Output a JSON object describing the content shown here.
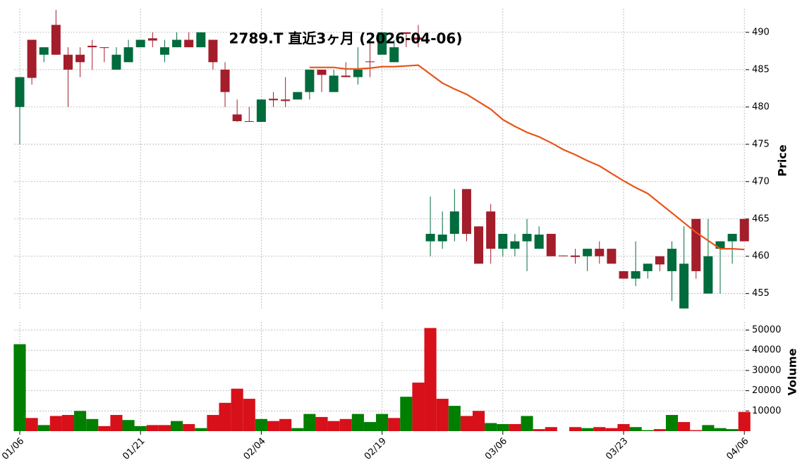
{
  "chart_data": [
    {
      "type": "candlestick",
      "title": "2789.T  直近3ヶ月  (2026-04-06)",
      "y_label": "Price",
      "categories": [
        "01/06",
        null,
        null,
        null,
        null,
        null,
        null,
        null,
        null,
        null,
        "01/21",
        null,
        null,
        null,
        null,
        null,
        null,
        null,
        null,
        null,
        "02/04",
        null,
        null,
        null,
        null,
        null,
        null,
        null,
        null,
        null,
        "02/19",
        null,
        null,
        null,
        null,
        null,
        null,
        null,
        null,
        null,
        "03/06",
        null,
        null,
        null,
        null,
        null,
        null,
        null,
        null,
        null,
        "03/23",
        null,
        null,
        null,
        null,
        null,
        null,
        null,
        null,
        null,
        "04/06"
      ],
      "open": [
        480,
        489,
        487,
        491,
        487,
        487,
        488.2,
        488,
        485,
        486,
        488,
        489.2,
        487,
        488,
        489,
        488,
        489,
        485,
        479,
        478.1,
        478,
        481.1,
        481,
        481,
        482,
        485,
        482,
        484.2,
        484,
        486.1,
        487,
        486,
        490,
        489.3,
        462,
        462,
        463,
        469,
        464,
        466,
        461,
        461,
        462,
        461,
        463,
        460.1,
        460.1,
        460,
        461,
        461,
        458,
        457,
        458,
        460,
        458,
        453,
        465,
        455,
        461,
        462,
        465
      ],
      "high": [
        484,
        489,
        488,
        493,
        488,
        488,
        489,
        488,
        488,
        489,
        489,
        490,
        489,
        490,
        490,
        490,
        489,
        486,
        481,
        480,
        481,
        482,
        484,
        482,
        485,
        485,
        485,
        486,
        488,
        489,
        490,
        489,
        490,
        491,
        468,
        466,
        469,
        469,
        464,
        467,
        463,
        463,
        465,
        464,
        463,
        460.1,
        461,
        461,
        462,
        461,
        458,
        462,
        459,
        460,
        462,
        464,
        465,
        465,
        462,
        463,
        465
      ],
      "low": [
        475,
        483,
        486,
        487,
        480,
        484,
        485,
        486,
        485,
        486,
        488,
        488,
        486,
        488,
        488,
        488,
        485,
        480,
        478,
        478,
        478,
        480,
        480,
        481,
        481,
        482,
        482,
        484,
        483,
        484,
        487,
        486,
        488,
        488,
        460,
        461,
        462,
        462,
        459,
        459,
        460,
        460,
        458,
        461,
        460,
        460,
        459,
        458,
        459,
        459,
        457,
        456,
        457,
        458,
        454,
        453,
        457,
        455,
        455,
        459,
        462
      ],
      "close": [
        484,
        483.9,
        488,
        487,
        485,
        486,
        488,
        487.9,
        487,
        488,
        489,
        488.9,
        488,
        489,
        488,
        490,
        486,
        482,
        478.1,
        478,
        481,
        480.9,
        480.8,
        482,
        485,
        484.3,
        484.2,
        484,
        485,
        486,
        490,
        488,
        489.8,
        489,
        463,
        462.9,
        466,
        463,
        459,
        461,
        463,
        462,
        463,
        462.9,
        460,
        460,
        459.9,
        461,
        460,
        459,
        457,
        458,
        459,
        458.9,
        461,
        459,
        458,
        460,
        462,
        463,
        462
      ],
      "up_color": "#006b3c",
      "down_color": "#a31d2b",
      "overlay": {
        "type": "line",
        "color": "#e8541a",
        "values": [
          null,
          null,
          null,
          null,
          null,
          null,
          null,
          null,
          null,
          null,
          null,
          null,
          null,
          null,
          null,
          null,
          null,
          null,
          null,
          null,
          null,
          null,
          null,
          null,
          485.3,
          485.3,
          485.3,
          485.1,
          485.1,
          485.2,
          485.4,
          485.4,
          485.5,
          485.6,
          484.4,
          483.2,
          482.4,
          481.7,
          480.7,
          479.7,
          478.3,
          477.4,
          476.6,
          476.0,
          475.2,
          474.3,
          473.6,
          472.8,
          472.1,
          471.1,
          470.1,
          469.2,
          468.4,
          467.1,
          465.8,
          464.5,
          463.2,
          462.1,
          461.0,
          461.0,
          460.9
        ]
      },
      "ylim": [
        452.8,
        493.2
      ],
      "yticks": [
        455,
        460,
        465,
        470,
        475,
        480,
        485,
        490
      ],
      "grid": true
    },
    {
      "type": "bar",
      "y_label": "Volume",
      "values": [
        43000,
        6500,
        3000,
        7500,
        8000,
        10000,
        6000,
        2500,
        8000,
        5500,
        2500,
        3000,
        3000,
        5000,
        3500,
        1500,
        8000,
        14000,
        21000,
        16000,
        6000,
        5000,
        6000,
        1500,
        8500,
        7000,
        5000,
        6000,
        8500,
        4500,
        8500,
        6500,
        17000,
        24000,
        51000,
        16000,
        12500,
        7500,
        10000,
        4000,
        3500,
        3500,
        7500,
        1000,
        2000,
        0,
        2000,
        1500,
        2000,
        1500,
        3500,
        2000,
        500,
        1000,
        8000,
        4500,
        500,
        3000,
        1500,
        1000,
        9500
      ],
      "up_color": "#007f00",
      "down_color": "#d7101a",
      "ylim": [
        0,
        54000
      ],
      "yticks": [
        10000,
        20000,
        30000,
        40000,
        50000
      ],
      "grid": true
    }
  ]
}
